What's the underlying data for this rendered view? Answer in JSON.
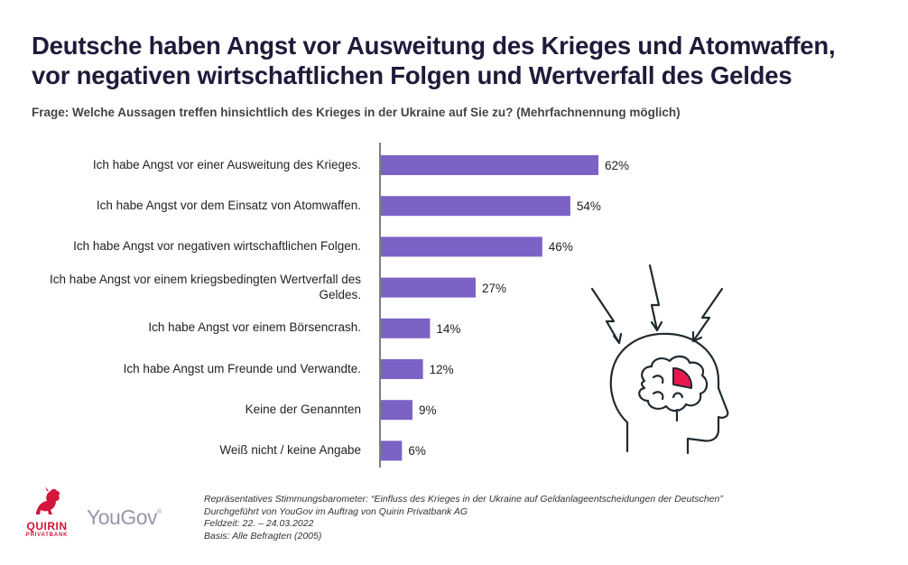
{
  "title_lines": [
    "Deutsche haben Angst vor Ausweitung des Krieges und Atomwaffen,",
    "vor negativen wirtschaftlichen Folgen und Wertverfall des Geldes"
  ],
  "question": "Frage: Welche Aussagen treffen hinsichtlich des Krieges in der Ukraine auf Sie zu? (Mehrfachnennung möglich)",
  "chart_data": {
    "type": "bar",
    "orientation": "horizontal",
    "categories": [
      "Ich habe Angst vor einer Ausweitung des Krieges.",
      "Ich habe Angst vor dem Einsatz von Atomwaffen.",
      "Ich habe Angst vor negativen wirtschaftlichen Folgen.",
      "Ich habe Angst vor einem kriegsbedingten Wertverfall des Geldes.",
      "Ich habe Angst vor einem Börsencrash.",
      "Ich habe Angst um Freunde und Verwandte.",
      "Keine der Genannten",
      "Weiß nicht / keine Angabe"
    ],
    "values": [
      62,
      54,
      46,
      27,
      14,
      12,
      9,
      6
    ],
    "value_labels": [
      "62%",
      "54%",
      "46%",
      "27%",
      "14%",
      "12%",
      "9%",
      "6%"
    ],
    "unit": "%",
    "bar_color": "#7b62c4",
    "grid": false,
    "legend": "none"
  },
  "footer": {
    "line1": "Repräsentatives Stimmungsbarometer: “Einfluss des Krieges in der Ukraine auf Geldanlageentscheidungen der Deutschen”",
    "line2": "Durchgeführt von YouGov im Auftrag von Quirin Privatbank AG",
    "line3": "Feldzeit: 22. – 24.03.2022",
    "line4": "Basis: Alle Befragten (2005)"
  },
  "logos": {
    "quirin_name": "QUIRIN",
    "quirin_sub": "PRIVATBANK",
    "yougov": "YouGov",
    "yougov_mark": "®"
  },
  "colors": {
    "title": "#1e1b3a",
    "bar": "#7b62c4",
    "quirin_red": "#d4163c",
    "yougov_gray": "#9c95a8",
    "brain_accent": "#e8174f"
  },
  "icons": {
    "illustration": "head-brain-stress-icon"
  }
}
